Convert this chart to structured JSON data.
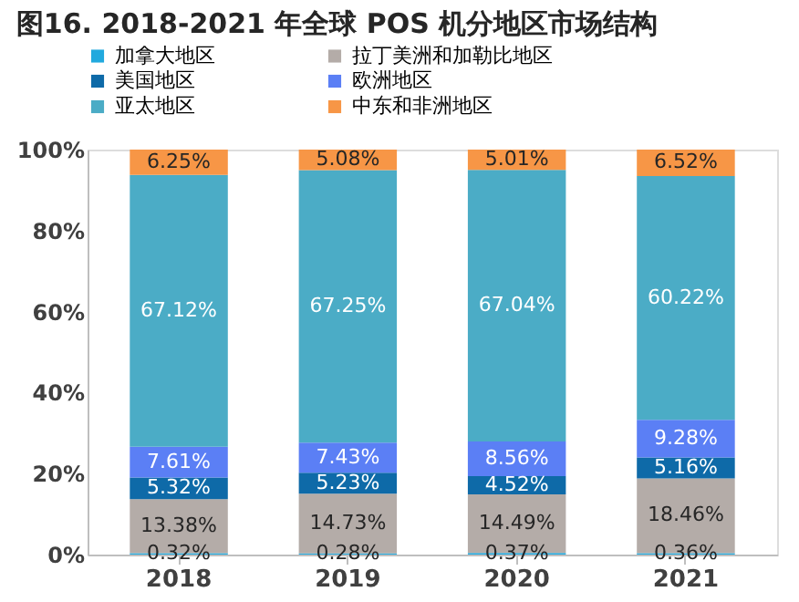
{
  "chart_data": {
    "type": "bar",
    "stacked": true,
    "title": "图16. 2018-2021 年全球 POS 机分地区市场结构",
    "categories": [
      "2018",
      "2019",
      "2020",
      "2021"
    ],
    "series": [
      {
        "name": "加拿大地区",
        "color": "#21a9de",
        "values": [
          0.32,
          0.28,
          0.37,
          0.36
        ],
        "value_labels": [
          "0.32%",
          "0.28%",
          "0.37%",
          "0.36%"
        ]
      },
      {
        "name": "拉丁美洲和加勒比地区",
        "color": "#b4aca8",
        "values": [
          13.38,
          14.73,
          14.49,
          18.46
        ],
        "value_labels": [
          "13.38%",
          "14.73%",
          "14.49%",
          "18.46%"
        ]
      },
      {
        "name": "美国地区",
        "color": "#0e6aa8",
        "values": [
          5.32,
          5.23,
          4.52,
          5.16
        ],
        "value_labels": [
          "5.32%",
          "5.23%",
          "4.52%",
          "5.16%"
        ]
      },
      {
        "name": "欧洲地区",
        "color": "#5b7ff5",
        "values": [
          7.61,
          7.43,
          8.56,
          9.28
        ],
        "value_labels": [
          "7.61%",
          "7.43%",
          "8.56%",
          "9.28%"
        ]
      },
      {
        "name": "亚太地区",
        "color": "#4bacc6",
        "values": [
          67.12,
          67.25,
          67.04,
          60.22
        ],
        "value_labels": [
          "67.12%",
          "67.25%",
          "67.04%",
          "60.22%"
        ]
      },
      {
        "name": "中东和非洲地区",
        "color": "#f79646",
        "values": [
          6.25,
          5.08,
          5.01,
          6.52
        ],
        "value_labels": [
          "6.25%",
          "5.08%",
          "5.01%",
          "6.52%"
        ]
      }
    ],
    "ylim": [
      0,
      100
    ],
    "yticks": [
      {
        "value": 0,
        "label": "0%"
      },
      {
        "value": 20,
        "label": "20%"
      },
      {
        "value": 40,
        "label": "40%"
      },
      {
        "value": 60,
        "label": "60%"
      },
      {
        "value": 80,
        "label": "80%"
      },
      {
        "value": 100,
        "label": "100%"
      }
    ],
    "grid": false,
    "legend": "top"
  }
}
